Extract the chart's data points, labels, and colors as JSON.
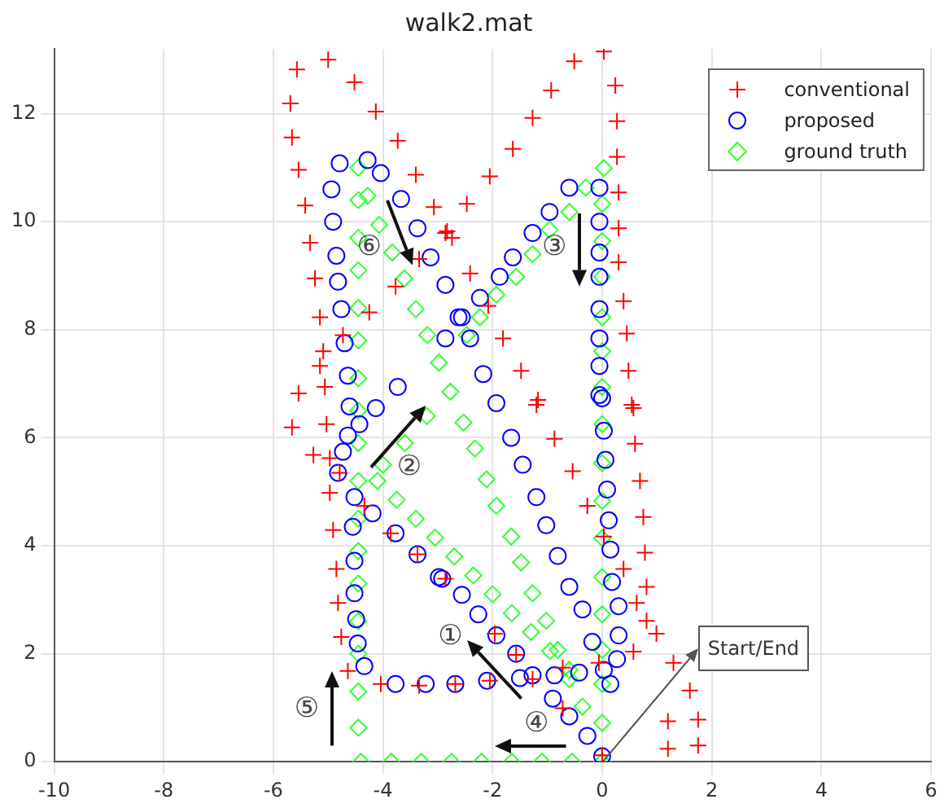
{
  "chart_data": {
    "type": "scatter",
    "title": "walk2.mat",
    "xlim": [
      -10,
      6
    ],
    "xticks": [
      -10,
      -8,
      -6,
      -4,
      -2,
      0,
      2,
      4,
      6
    ],
    "ylim": [
      0,
      13.2
    ],
    "yticks": [
      0,
      2,
      4,
      6,
      8,
      10,
      12
    ],
    "grid": true,
    "legend": "top right",
    "series": [
      {
        "name": "conventional",
        "color": "#ff0000",
        "marker": "cross",
        "x": [
          -5.57,
          -5.0,
          -4.52,
          -5.69,
          -4.13,
          -5.66,
          -3.73,
          -5.54,
          -3.4,
          -5.42,
          -3.07,
          -5.33,
          -2.83,
          -2.74,
          -3.34,
          -5.24,
          -3.77,
          -5.15,
          -4.25,
          -4.73,
          -5.09,
          -5.15,
          -5.06,
          -5.54,
          -5.66,
          -5.03,
          -5.27,
          -4.97,
          -4.79,
          -4.97,
          -4.34,
          -4.91,
          -4.85,
          -4.82,
          -4.76,
          -4.64,
          -4.04,
          -3.34,
          -3.86,
          -3.37,
          -2.86,
          -1.96,
          -1.57,
          -1.27,
          -0.72,
          -0.72,
          -2.68,
          -2.05,
          -0.06,
          0,
          -1.2,
          -0.87,
          -0.54,
          -0.27,
          0.03,
          0.39,
          0.57,
          0.6,
          0.69,
          0.75,
          0.78,
          0.81,
          0.63,
          0.81,
          0.99,
          0.57,
          1.3,
          1.6,
          1.2,
          1.75,
          1.2,
          1.75,
          -0.51,
          0.03,
          -0.93,
          0.24,
          -1.27,
          0.27,
          -1.63,
          0.27,
          -2.05,
          0.3,
          -2.47,
          0.3,
          -2.86,
          0.3,
          -2.41,
          0.39,
          -2.08,
          0.45,
          -1.81,
          0.48,
          -1.48,
          0.54,
          -1.17
        ],
        "values": [
          12.82,
          13.0,
          12.58,
          12.19,
          12.04,
          11.56,
          11.5,
          10.96,
          10.87,
          10.3,
          10.27,
          9.61,
          9.82,
          9.7,
          9.31,
          8.95,
          8.8,
          8.23,
          8.32,
          7.9,
          7.6,
          7.33,
          6.94,
          6.82,
          6.19,
          6.25,
          5.68,
          5.62,
          5.35,
          4.98,
          4.74,
          4.29,
          3.57,
          2.94,
          2.31,
          1.68,
          1.44,
          1.41,
          4.23,
          3.84,
          3.39,
          2.37,
          1.98,
          1.53,
          1.74,
          0.99,
          1.44,
          1.5,
          1.83,
          0.12,
          6.61,
          5.98,
          5.38,
          4.74,
          4.17,
          3.57,
          6.55,
          5.89,
          5.2,
          4.53,
          3.87,
          3.24,
          2.94,
          2.61,
          2.37,
          2.04,
          1.83,
          1.32,
          0.75,
          0.78,
          0.24,
          0.3,
          12.97,
          13.15,
          12.43,
          12.52,
          11.92,
          11.86,
          11.35,
          11.2,
          10.84,
          10.54,
          10.33,
          9.88,
          9.79,
          9.25,
          9.04,
          8.53,
          8.44,
          7.93,
          7.84,
          7.24,
          7.24,
          6.61,
          6.7
        ]
      },
      {
        "name": "proposed",
        "color": "#0000ff",
        "marker": "circle",
        "x": [
          0,
          -0.27,
          -0.6,
          -0.9,
          -1.27,
          -1.57,
          -1.93,
          -2.26,
          -2.56,
          -2.92,
          -2.98,
          -3.37,
          -3.77,
          -4.19,
          -4.52,
          -4.34,
          -4.46,
          -4.49,
          -4.52,
          -4.52,
          -4.55,
          -4.82,
          -4.73,
          -4.64,
          -4.43,
          -4.61,
          -4.64,
          -4.7,
          -4.76,
          -4.82,
          -4.85,
          -4.91,
          -4.94,
          -4.79,
          -4.28,
          -4.04,
          -3.67,
          -3.37,
          -3.13,
          -2.86,
          -2.62,
          -2.41,
          -2.17,
          -1.93,
          -1.66,
          -1.45,
          -1.2,
          -1.02,
          -0.81,
          -0.6,
          -0.36,
          -0.18,
          -4.13,
          -3.73,
          -2.86,
          -2.56,
          -2.23,
          -1.87,
          -1.63,
          -1.27,
          -0.96,
          -0.6,
          -0.05,
          -0.05,
          -0.05,
          -0.05,
          -0.05,
          -0.05,
          -0.05,
          -0.05,
          0,
          0.03,
          0.06,
          0.09,
          0.12,
          0.15,
          0.18,
          0.3,
          0.3,
          0.27,
          0.15,
          0.03,
          -3.77,
          -3.22,
          -2.68,
          -2.1,
          -1.5,
          -0.87,
          -0.42
        ],
        "values": [
          0.1,
          0.48,
          0.84,
          1.17,
          1.6,
          2.0,
          2.34,
          2.73,
          3.09,
          3.39,
          3.42,
          3.84,
          4.23,
          4.6,
          4.9,
          1.77,
          2.19,
          2.64,
          3.12,
          3.72,
          4.35,
          5.35,
          5.74,
          6.04,
          6.25,
          6.58,
          7.15,
          7.75,
          8.38,
          8.89,
          9.37,
          10.0,
          10.6,
          11.08,
          11.14,
          10.9,
          10.42,
          9.88,
          9.34,
          8.83,
          8.23,
          7.84,
          7.18,
          6.64,
          6.0,
          5.5,
          4.9,
          4.38,
          3.81,
          3.24,
          2.82,
          2.22,
          6.55,
          6.94,
          7.84,
          8.23,
          8.59,
          8.98,
          9.34,
          9.79,
          10.18,
          10.63,
          10.63,
          10.0,
          9.43,
          8.98,
          8.38,
          7.84,
          7.33,
          6.79,
          6.73,
          6.13,
          5.59,
          5.04,
          4.47,
          3.93,
          3.33,
          2.88,
          2.34,
          1.9,
          1.44,
          1.7,
          1.44,
          1.44,
          1.44,
          1.5,
          1.55,
          1.6,
          1.65
        ]
      },
      {
        "name": "ground truth",
        "color": "#33ff33",
        "marker": "diamond",
        "x": [
          0,
          -0.55,
          -1.1,
          -1.65,
          -2.2,
          -2.75,
          -3.3,
          -3.85,
          -4.4,
          -4.45,
          -4.45,
          -4.45,
          -4.45,
          -4.45,
          -4.45,
          -4.45,
          -4.45,
          -4.45,
          -4.45,
          -4.45,
          -4.45,
          -4.45,
          -4.45,
          -4.45,
          -4.45,
          -4.45,
          -4.28,
          -4.07,
          -3.83,
          -3.61,
          -3.4,
          -3.19,
          -2.98,
          -2.77,
          -2.53,
          -2.32,
          -2.11,
          -1.93,
          -1.66,
          -1.48,
          -1.27,
          -1.02,
          -0.81,
          -0.6,
          -0.36,
          -4.0,
          -3.6,
          -3.2,
          -2.47,
          -2.23,
          -1.93,
          -1.57,
          -1.27,
          -0.96,
          -0.6,
          -0.3,
          0.03,
          0,
          0,
          0,
          0,
          0,
          0,
          0,
          0,
          0,
          0,
          0,
          0,
          0,
          0,
          0,
          -4.1,
          -3.75,
          -3.4,
          -3.05,
          -2.7,
          -2.35,
          -2.0,
          -1.65,
          -1.3,
          -0.95,
          -0.6
        ],
        "values": [
          0,
          0,
          0,
          0,
          0,
          0,
          0,
          0,
          0,
          0.63,
          1.3,
          2.0,
          2.6,
          3.3,
          3.9,
          4.5,
          5.2,
          5.9,
          6.5,
          7.1,
          7.8,
          8.4,
          9.1,
          9.7,
          10.4,
          11.0,
          10.48,
          9.94,
          9.43,
          8.95,
          8.38,
          7.9,
          7.39,
          6.85,
          6.28,
          5.8,
          5.23,
          4.74,
          4.17,
          3.69,
          3.12,
          2.61,
          2.07,
          1.53,
          1.02,
          5.5,
          5.9,
          6.4,
          7.9,
          8.23,
          8.65,
          8.98,
          9.4,
          9.85,
          10.18,
          10.63,
          10.99,
          10.33,
          9.64,
          8.98,
          8.23,
          7.6,
          6.94,
          6.25,
          5.53,
          4.83,
          4.14,
          3.42,
          2.73,
          2.07,
          1.44,
          0.72,
          5.2,
          4.85,
          4.5,
          4.15,
          3.8,
          3.45,
          3.1,
          2.75,
          2.4,
          2.05,
          1.7
        ]
      }
    ],
    "annotations": [
      "⑥",
      "③",
      "②",
      "①",
      "④",
      "⑤",
      {
        "text": "Start/End",
        "x": 0,
        "y": 0
      }
    ]
  }
}
